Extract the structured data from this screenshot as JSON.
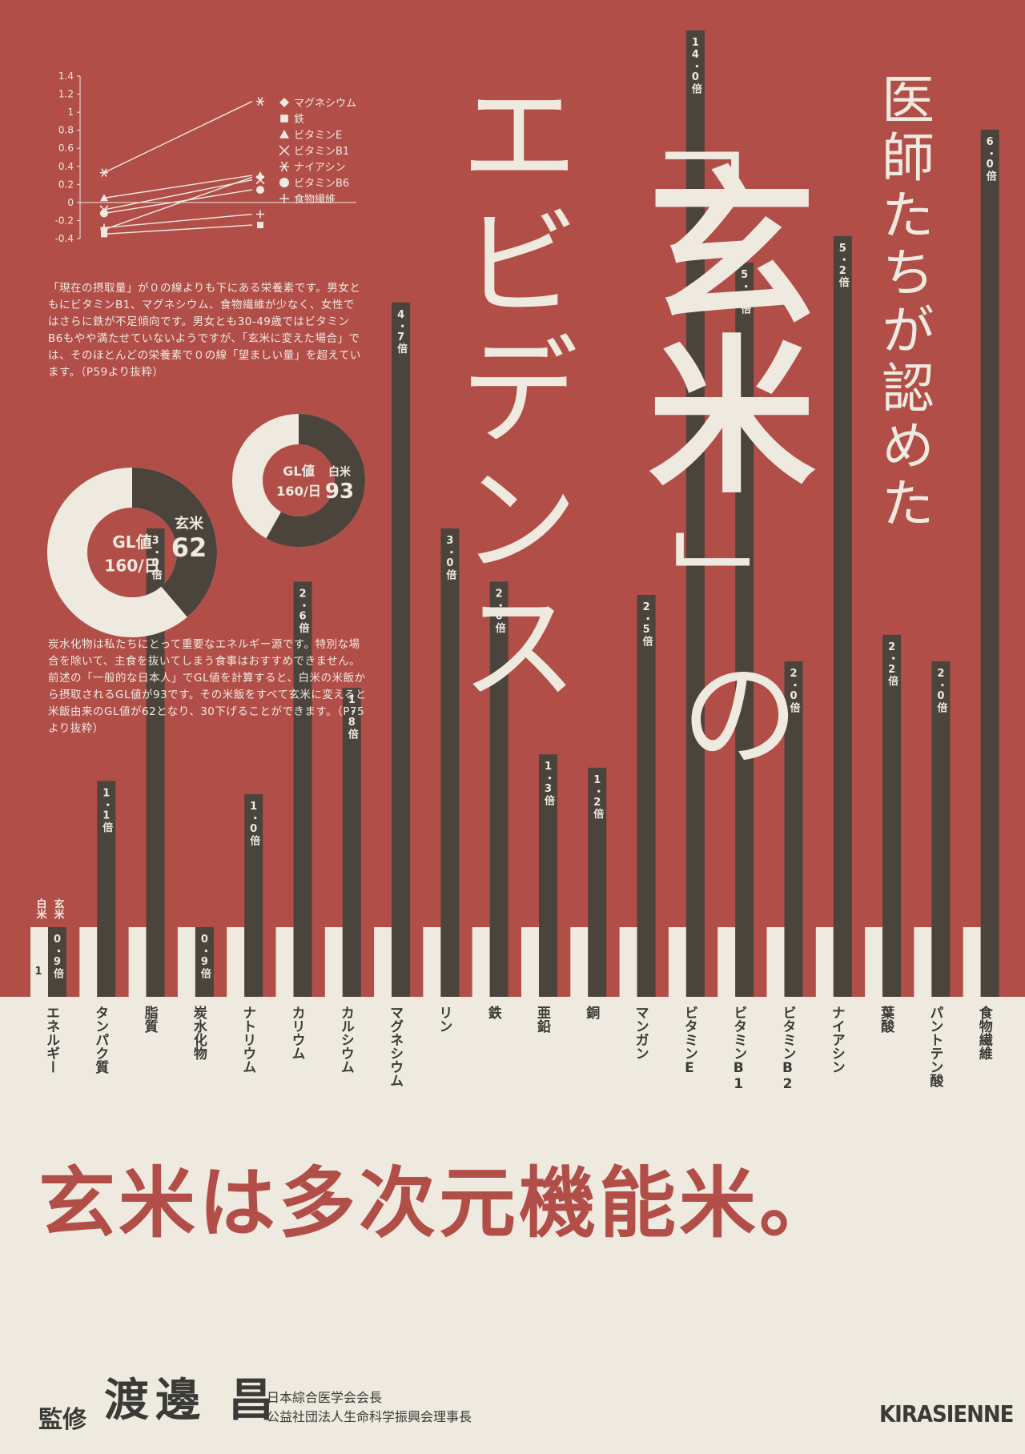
{
  "title": {
    "subtitle": "医師たちが認めた",
    "open_bracket": "「",
    "main": "玄米",
    "close_bracket": "」",
    "particle": "の",
    "evidence": "エビデンス"
  },
  "line_chart": {
    "y_ticks": [
      "1.4",
      "1.2",
      "1",
      "0.8",
      "0.6",
      "0.4",
      "0.2",
      "0",
      "-0.2",
      "-0.4"
    ],
    "legend": [
      {
        "marker": "diamond",
        "label": "マグネシウム"
      },
      {
        "marker": "square",
        "label": "鉄"
      },
      {
        "marker": "triangle",
        "label": "ビタミンE"
      },
      {
        "marker": "x",
        "label": "ビタミンB1"
      },
      {
        "marker": "asterisk",
        "label": "ナイアシン"
      },
      {
        "marker": "circle",
        "label": "ビタミンB6"
      },
      {
        "marker": "plus",
        "label": "食物繊維"
      }
    ],
    "series": [
      {
        "name": "マグネシウム",
        "values": [
          -0.3,
          0.28
        ]
      },
      {
        "name": "鉄",
        "values": [
          -0.35,
          -0.25
        ]
      },
      {
        "name": "ビタミンE",
        "values": [
          0.05,
          0.3
        ]
      },
      {
        "name": "ビタミンB1",
        "values": [
          -0.08,
          0.25
        ]
      },
      {
        "name": "ナイアシン",
        "values": [
          0.33,
          1.12
        ]
      },
      {
        "name": "ビタミンB6",
        "values": [
          -0.12,
          0.14
        ]
      },
      {
        "name": "食物繊維",
        "values": [
          -0.28,
          -0.13
        ]
      }
    ],
    "ylim": [
      -0.4,
      1.4
    ]
  },
  "para1": "「現在の摂取量」が０の線よりも下にある栄養素です。男女ともにビタミンB1、マグネシウム、食物繊維が少なく、女性ではさらに鉄が不足傾向です。男女とも30-49歳ではビタミンB6もやや満たせていないようですが、「玄米に変えた場合」では、そのほとんどの栄養素で０の線「望ましい量」を超えています。（P59より抜粋）",
  "donuts": [
    {
      "center_line1": "GL値",
      "center_line2": "160/日",
      "label": "玄米",
      "value": "62",
      "fraction": 0.3875
    },
    {
      "center_line1": "GL値",
      "center_line2": "160/日",
      "label": "白米",
      "value": "93",
      "fraction": 0.58125
    }
  ],
  "para2": "炭水化物は私たちにとって重要なエネルギー源です。特別な場合を除いて、主食を抜いてしまう食事はおすすめできません。前述の「一般的な日本人」でGL値を計算すると、白米の米飯から摂取されるGL値が93です。その米飯をすべて玄米に変えると米飯由来のGL値が62となり、30下げることができます。（P75より抜粋）",
  "chart_data": {
    "type": "bar",
    "legend": {
      "white": "白米",
      "brown": "玄米"
    },
    "baseline_label": "1",
    "categories": [
      "エネルギー",
      "タンパク質",
      "脂質",
      "炭水化物",
      "ナトリウム",
      "カリウム",
      "カルシウム",
      "マグネシウム",
      "リン",
      "鉄",
      "亜鉛",
      "銅",
      "マンガン",
      "ビタミンE",
      "ビタミンB1",
      "ビタミンB2",
      "ナイアシン",
      "葉酸",
      "パントテン酸",
      "食物繊維"
    ],
    "values": [
      0.9,
      1.1,
      3.0,
      0.9,
      1.0,
      2.6,
      1.8,
      4.7,
      3.0,
      2.6,
      1.3,
      1.2,
      2.5,
      14.0,
      5.0,
      2.0,
      5.2,
      2.2,
      2.0,
      6.0
    ],
    "value_labels": [
      "0・9倍",
      "1・1倍",
      "3・0倍",
      "0・9倍",
      "1・0倍",
      "2・6倍",
      "1・8倍",
      "4・7倍",
      "3・0倍",
      "2・6倍",
      "1・3倍",
      "1・2倍",
      "2・5倍",
      "14・0倍",
      "5・0倍",
      "2・0倍",
      "5・2倍",
      "2・2倍",
      "2・0倍",
      "6・0倍"
    ]
  },
  "tagline": "玄米は多次元機能米。",
  "footer": {
    "label": "監修",
    "name": "渡邊 昌",
    "title1": "日本綜合医学会会長",
    "title2": "公益社団法人生命科学振興会理事長",
    "publisher": "KIRASIENNE"
  },
  "colors": {
    "red": "#b24e48",
    "cream": "#efeae0",
    "dark": "#4a443c"
  }
}
